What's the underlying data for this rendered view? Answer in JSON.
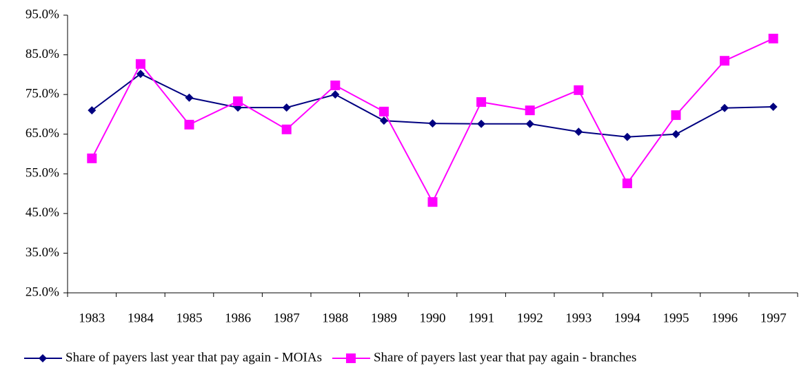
{
  "chart_data": {
    "type": "line",
    "categories": [
      "1983",
      "1984",
      "1985",
      "1986",
      "1987",
      "1988",
      "1989",
      "1990",
      "1991",
      "1992",
      "1993",
      "1994",
      "1995",
      "1996",
      "1997"
    ],
    "series": [
      {
        "name": "Share of payers last year that pay again - MOIAs",
        "color": "#000080",
        "marker": "diamond",
        "values": [
          71.0,
          80.2,
          74.2,
          71.7,
          71.7,
          75.0,
          68.4,
          67.7,
          67.6,
          67.6,
          65.6,
          64.3,
          65.0,
          71.6,
          71.9
        ]
      },
      {
        "name": "Share of payers last year that pay again - branches",
        "color": "#ff00ff",
        "marker": "square",
        "values": [
          58.9,
          82.7,
          67.4,
          73.3,
          66.2,
          77.3,
          70.7,
          47.9,
          73.1,
          71.0,
          76.1,
          52.6,
          69.8,
          83.5,
          89.1
        ]
      }
    ],
    "ylim": [
      25,
      95
    ],
    "yticks": [
      {
        "value": 25,
        "label": "25.0%"
      },
      {
        "value": 35,
        "label": "35.0%"
      },
      {
        "value": 45,
        "label": "45.0%"
      },
      {
        "value": 55,
        "label": "55.0%"
      },
      {
        "value": 65,
        "label": "65.0%"
      },
      {
        "value": 75,
        "label": "75.0%"
      },
      {
        "value": 85,
        "label": "85.0%"
      },
      {
        "value": 95,
        "label": "95.0%"
      }
    ],
    "grid": false,
    "legend": "bottom"
  }
}
